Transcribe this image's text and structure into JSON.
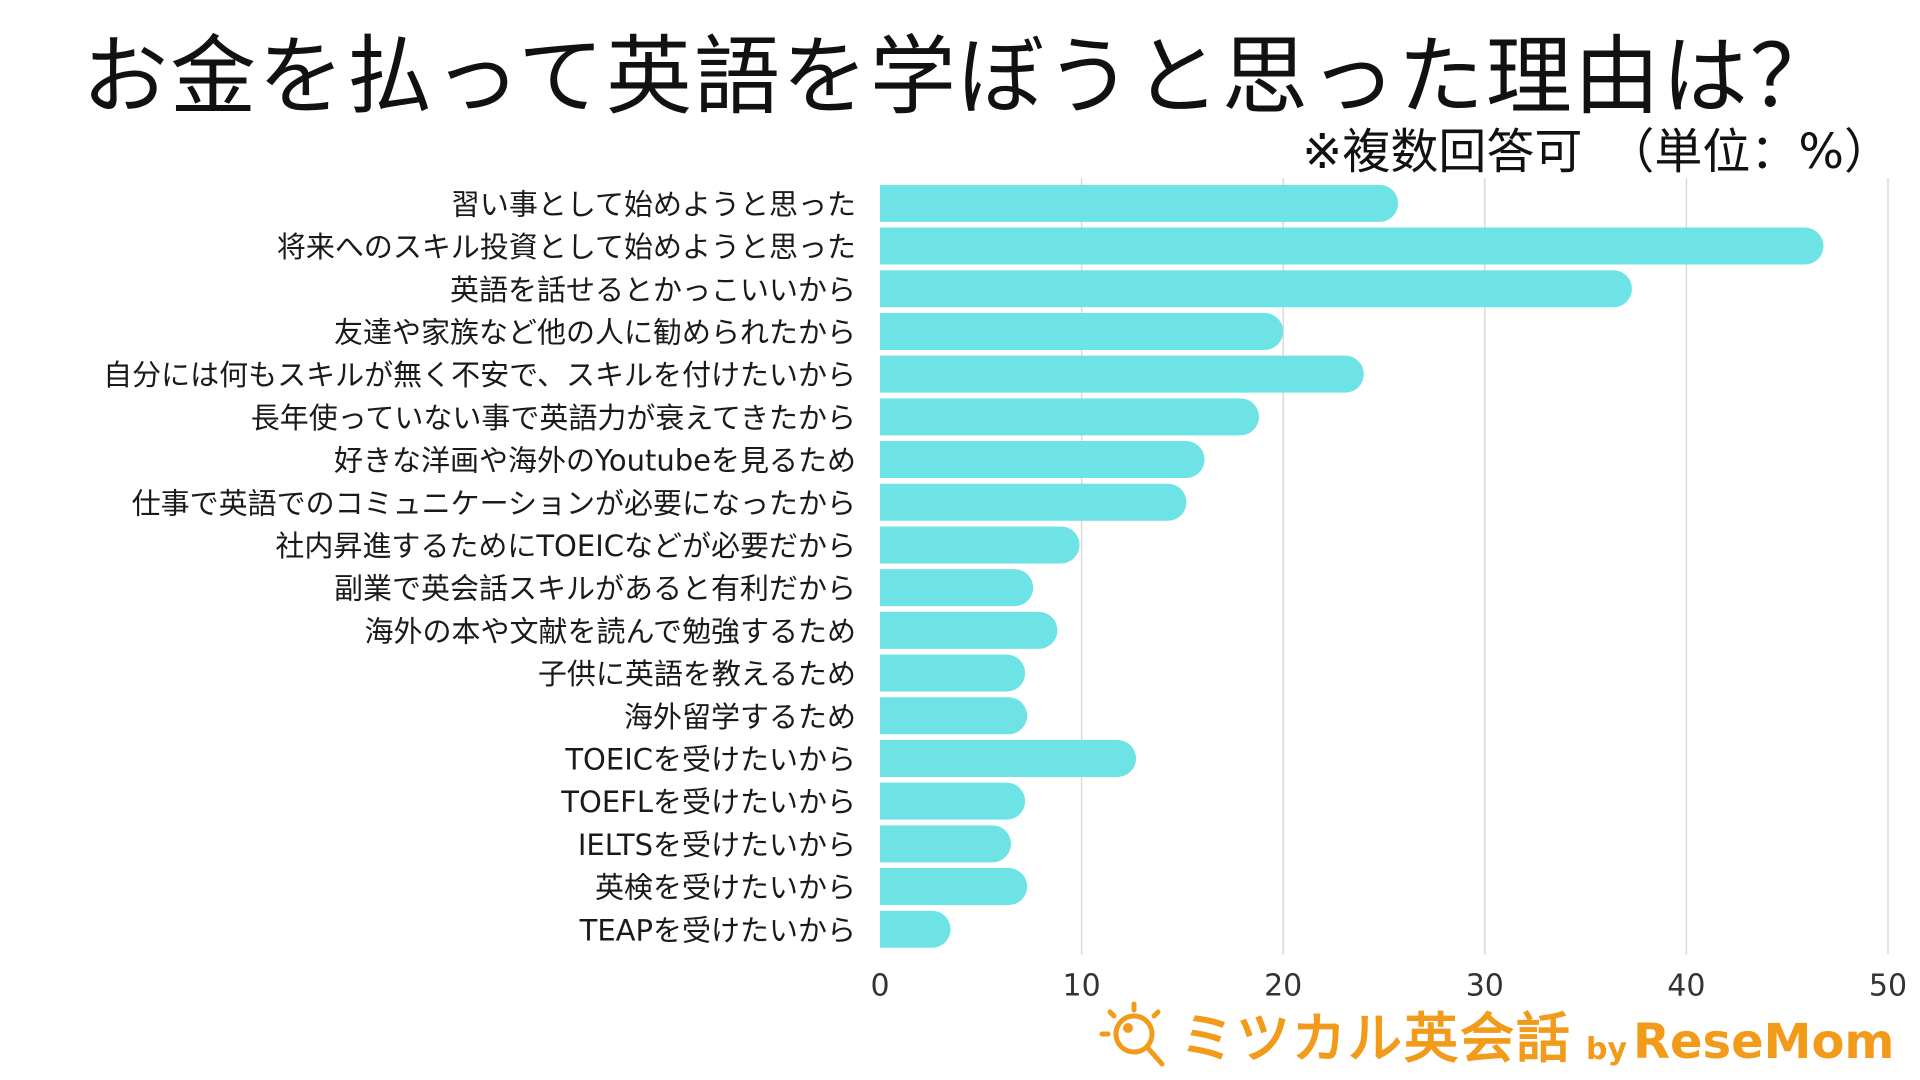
{
  "title": "お金を払って英語を学ぼうと思った理由は？",
  "subtitle": "※複数回答可　（単位：%）",
  "logo": {
    "name": "ミツカル英会話",
    "by": "by",
    "brand": "ReseMom"
  },
  "colors": {
    "bar": "#6ee3e6",
    "grid": "#d9d9d9",
    "logo": "#f29a1a"
  },
  "chart_data": {
    "type": "bar",
    "orientation": "horizontal",
    "title": "お金を払って英語を学ぼうと思った理由は？",
    "subtitle": "※複数回答可　（単位：%）",
    "xlabel": "",
    "ylabel": "",
    "xlim": [
      0,
      50
    ],
    "x_ticks": [
      0,
      10,
      20,
      30,
      40,
      50
    ],
    "grid": "vertical",
    "legend": "none",
    "categories": [
      "習い事として始めようと思った",
      "将来へのスキル投資として始めようと思った",
      "英語を話せるとかっこいいから",
      "友達や家族など他の人に勧められたから",
      "自分には何もスキルが無く不安で、スキルを付けたいから",
      "長年使っていない事で英語力が衰えてきたから",
      "好きな洋画や海外のYoutubeを見るため",
      "仕事で英語でのコミュニケーションが必要になったから",
      "社内昇進するためにTOEICなどが必要だから",
      "副業で英会話スキルがあると有利だから",
      "海外の本や文献を読んで勉強するため",
      "子供に英語を教えるため",
      "海外留学するため",
      "TOEICを受けたいから",
      "TOEFLを受けたいから",
      "IELTSを受けたいから",
      "英検を受けたいから",
      "TEAPを受けたいから"
    ],
    "values": [
      25.7,
      46.8,
      37.3,
      20.0,
      24.0,
      18.8,
      16.1,
      15.2,
      9.9,
      7.6,
      8.8,
      7.2,
      7.3,
      12.7,
      7.2,
      6.5,
      7.3,
      3.5
    ]
  }
}
